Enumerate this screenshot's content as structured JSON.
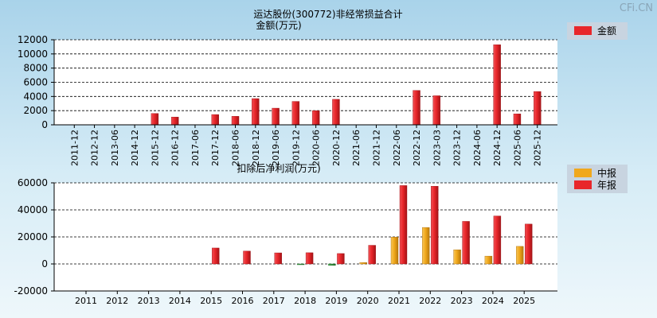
{
  "watermark": "CFi.CN",
  "top_title": "运达股份(300772)非经常损益合计",
  "colors": {
    "red_bar": "#e8262a",
    "red_bar_dark": "#b51418",
    "orange_bar": "#f0a81c",
    "orange_bar_dark": "#c98208",
    "green_bar": "#2e8b3a",
    "grid": "#000000",
    "plot_bg": "#ffffff",
    "legend_bg": "#c8d4e0"
  },
  "chart_data": [
    {
      "type": "bar",
      "title": "",
      "ylabel": "金额(万元)",
      "legend": [
        "金额"
      ],
      "legend_position": "top-right",
      "grid": true,
      "ylim": [
        0,
        12000
      ],
      "yticks": [
        0,
        2000,
        4000,
        6000,
        8000,
        10000,
        12000
      ],
      "categories": [
        "2011-12",
        "2012-12",
        "2013-06",
        "2014-12",
        "2015-12",
        "2016-12",
        "2017-06",
        "2017-12",
        "2018-06",
        "2018-12",
        "2019-06",
        "2019-12",
        "2020-06",
        "2020-12",
        "2021-06",
        "2021-12",
        "2022-06",
        "2022-12",
        "2023-03",
        "2023-12",
        "2024-06",
        "2024-12",
        "2025-06",
        "2025-12"
      ],
      "series": [
        {
          "name": "金额",
          "color": "red",
          "values": [
            0,
            0,
            0,
            0,
            1600,
            1100,
            0,
            1450,
            1200,
            3700,
            2350,
            3300,
            2000,
            3600,
            0,
            0,
            0,
            4850,
            4100,
            0,
            0,
            11300,
            1550,
            4700
          ]
        }
      ]
    },
    {
      "type": "bar",
      "title": "扣除后净利润(万元)",
      "legend": [
        "中报",
        "年报"
      ],
      "legend_position": "top-right",
      "grid": true,
      "ylim": [
        -20000,
        60000
      ],
      "yticks": [
        -20000,
        0,
        20000,
        40000,
        60000
      ],
      "categories": [
        "2011",
        "2012",
        "2013",
        "2014",
        "2015",
        "2016",
        "2017",
        "2018",
        "2019",
        "2020",
        "2021",
        "2022",
        "2023",
        "2024",
        "2025"
      ],
      "series": [
        {
          "name": "中报",
          "color": "orange",
          "values": [
            0,
            0,
            0,
            0,
            0,
            0,
            0,
            -400,
            -1100,
            1000,
            19800,
            27000,
            10500,
            5800,
            13000
          ]
        },
        {
          "name": "年报",
          "color": "red",
          "values": [
            0,
            0,
            0,
            0,
            11800,
            9500,
            8200,
            8300,
            7700,
            13800,
            58000,
            57500,
            31500,
            35500,
            29500
          ]
        }
      ]
    }
  ]
}
